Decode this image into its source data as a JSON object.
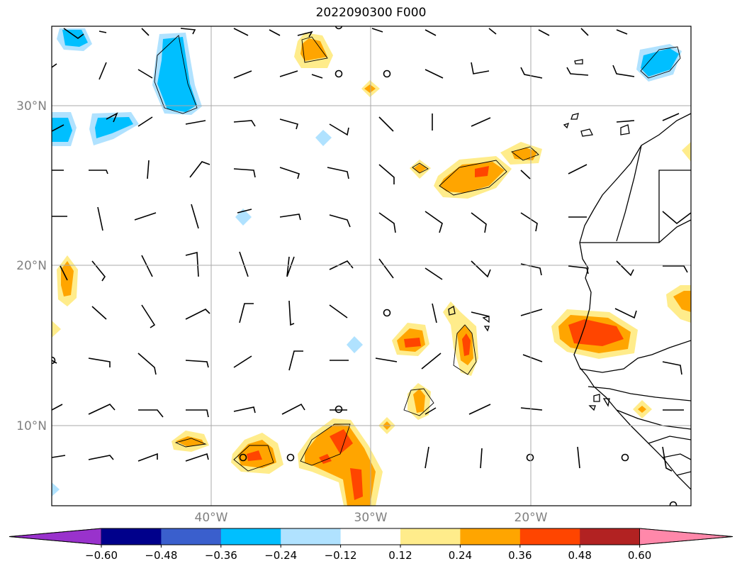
{
  "title": "2022090300 F000",
  "map": {
    "lat_labels": [
      "30°N",
      "20°N",
      "10°N"
    ],
    "lon_labels": [
      "40°W",
      "30°W",
      "20°W"
    ],
    "lon_range": [
      -50,
      -10
    ],
    "lat_range": [
      5,
      35
    ]
  },
  "colorbar": {
    "ticks": [
      "−0.60",
      "−0.48",
      "−0.36",
      "−0.24",
      "−0.12",
      "0.12",
      "0.24",
      "0.36",
      "0.48",
      "0.60"
    ],
    "colors": [
      "#9932cc",
      "#00008b",
      "#3a5fcd",
      "#00bfff",
      "#b0e2ff",
      "#ffffff",
      "#ffec8b",
      "#ffa500",
      "#ff4500",
      "#b22222",
      "#ff88aa"
    ]
  }
}
